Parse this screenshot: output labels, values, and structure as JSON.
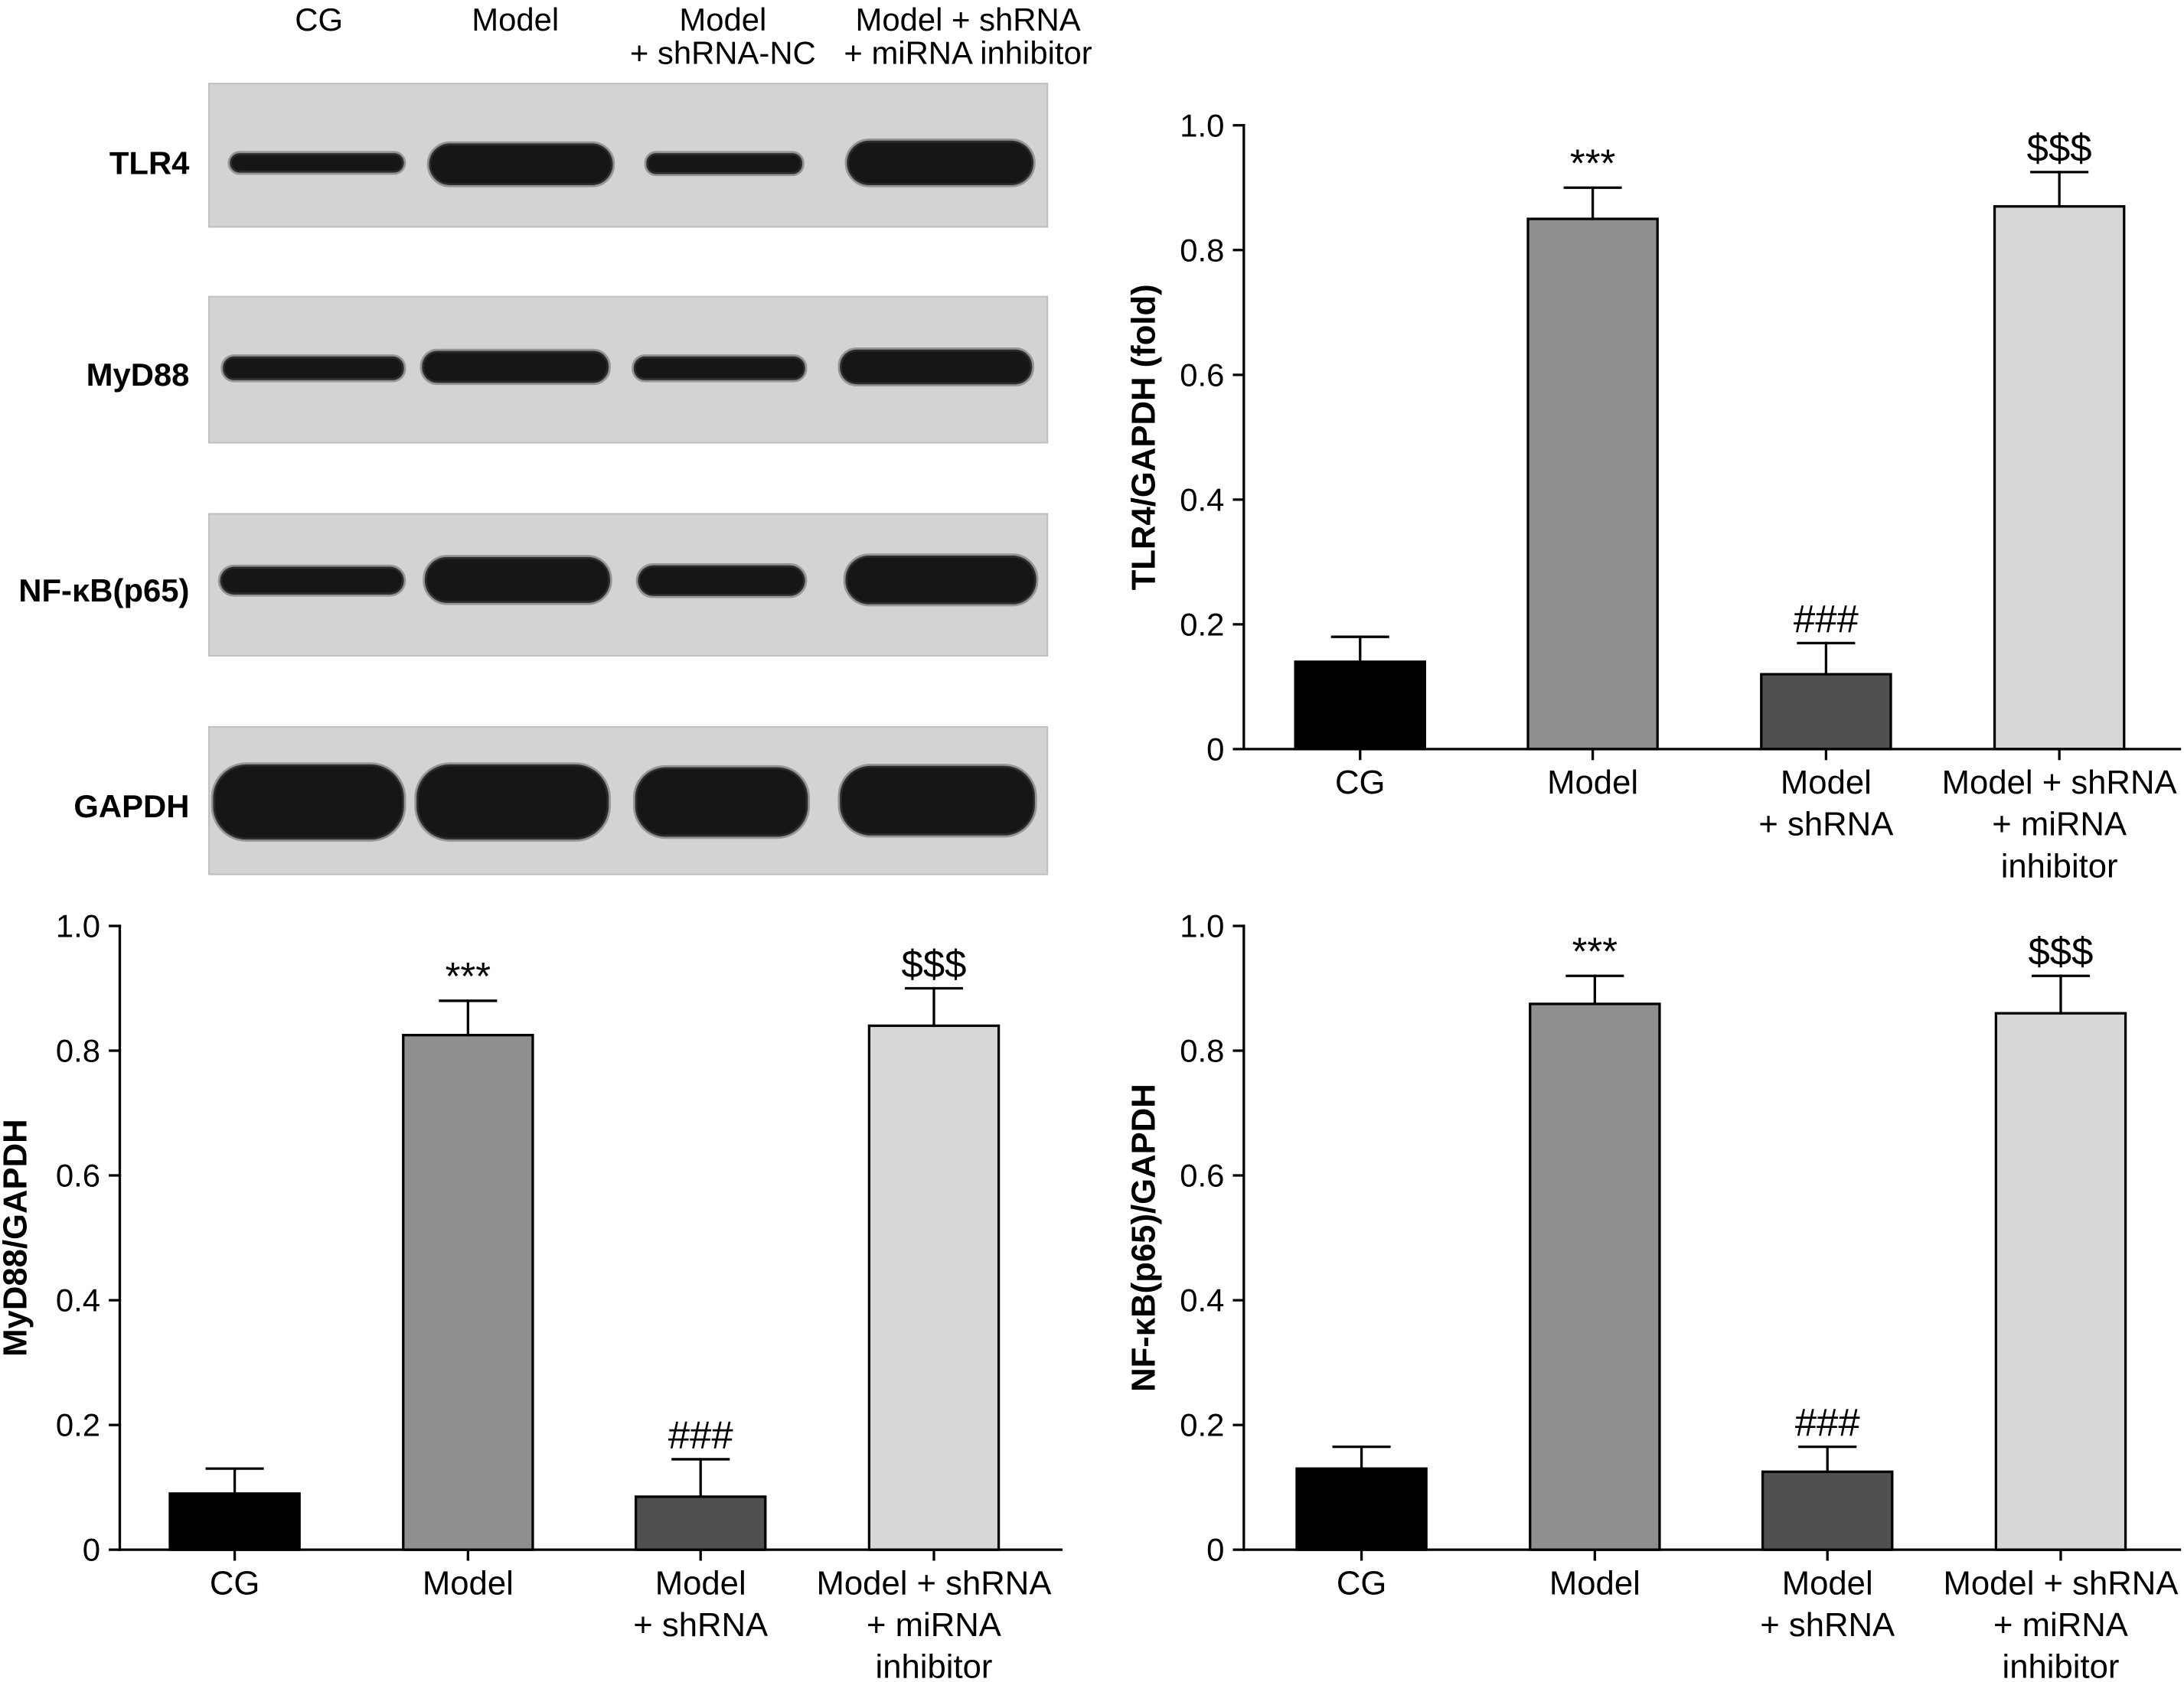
{
  "blot": {
    "lanes": [
      [
        "CG"
      ],
      [
        "Model"
      ],
      [
        "Model",
        "+ shRNA-NC"
      ],
      [
        "Model + shRNA",
        "+ miRNA inhibitor"
      ]
    ],
    "rows": [
      "TLR4",
      "MyD88",
      "NF-κB(p65)",
      "GAPDH"
    ]
  },
  "colors": {
    "blot_background": "#d3d3d3",
    "band": "#161616",
    "bars": [
      "#000000",
      "#8f8f8f",
      "#505050",
      "#d7d7d7"
    ],
    "axis": "#000000"
  },
  "chart_data": [
    {
      "type": "bar",
      "ylabel": "TLR4/GAPDH (fold)",
      "categories": [
        [
          "CG"
        ],
        [
          "Model"
        ],
        [
          "Model",
          "+ shRNA"
        ],
        [
          "Model + shRNA",
          "+ miRNA",
          "inhibitor"
        ]
      ],
      "values": [
        0.14,
        0.85,
        0.12,
        0.87
      ],
      "errors": [
        0.04,
        0.05,
        0.05,
        0.055
      ],
      "annotations": [
        "",
        "***",
        "###",
        "$$$"
      ],
      "ylim": [
        0,
        1.0
      ],
      "yticks": [
        "0",
        "0.2",
        "0.4",
        "0.6",
        "0.8",
        "1.0"
      ],
      "grid": false,
      "legend": "none"
    },
    {
      "type": "bar",
      "ylabel": "MyD88/GAPDH",
      "categories": [
        [
          "CG"
        ],
        [
          "Model"
        ],
        [
          "Model",
          "+ shRNA"
        ],
        [
          "Model + shRNA",
          "+ miRNA",
          "inhibitor"
        ]
      ],
      "values": [
        0.09,
        0.825,
        0.085,
        0.84
      ],
      "errors": [
        0.04,
        0.055,
        0.06,
        0.06
      ],
      "annotations": [
        "",
        "***",
        "###",
        "$$$"
      ],
      "ylim": [
        0,
        1.0
      ],
      "yticks": [
        "0",
        "0.2",
        "0.4",
        "0.6",
        "0.8",
        "1.0"
      ],
      "grid": false,
      "legend": "none"
    },
    {
      "type": "bar",
      "ylabel": "NF-κB(p65)/GAPDH",
      "categories": [
        [
          "CG"
        ],
        [
          "Model"
        ],
        [
          "Model",
          "+ shRNA"
        ],
        [
          "Model + shRNA",
          "+ miRNA",
          "inhibitor"
        ]
      ],
      "values": [
        0.13,
        0.875,
        0.125,
        0.86
      ],
      "errors": [
        0.035,
        0.045,
        0.04,
        0.06
      ],
      "annotations": [
        "",
        "***",
        "###",
        "$$$"
      ],
      "ylim": [
        0,
        1.0
      ],
      "yticks": [
        "0",
        "0.2",
        "0.4",
        "0.6",
        "0.8",
        "1.0"
      ],
      "grid": false,
      "legend": "none"
    }
  ]
}
